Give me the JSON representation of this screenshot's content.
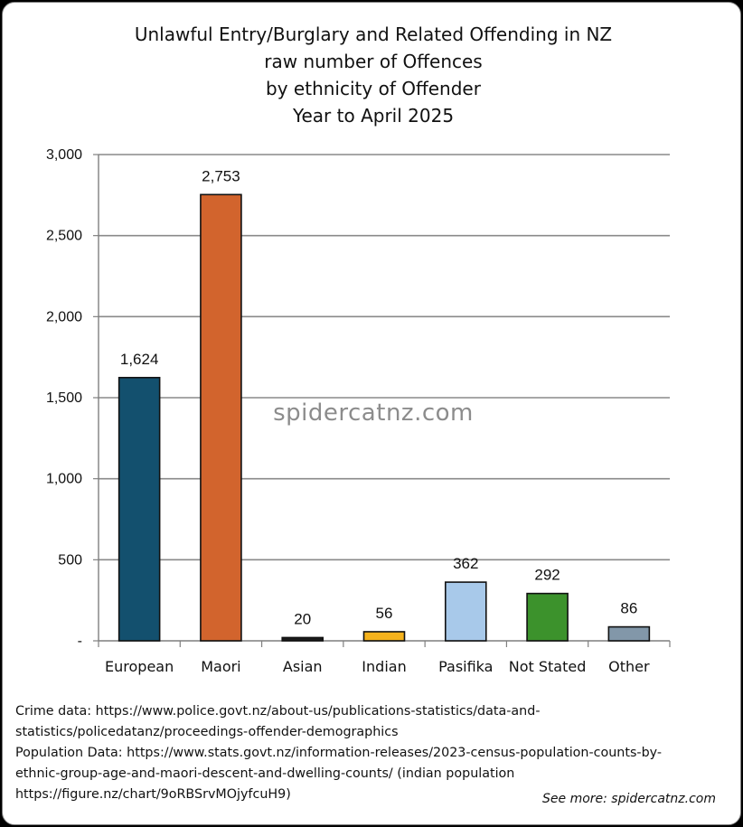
{
  "chart_data": {
    "type": "bar",
    "title": [
      "Unlawful Entry/Burglary and Related Offending in NZ",
      "raw number of Offences",
      "by ethnicity of Offender",
      "Year to April 2025"
    ],
    "categories": [
      "European",
      "Maori",
      "Asian",
      "Indian",
      "Pasifika",
      "Not Stated",
      "Other"
    ],
    "values": [
      1624,
      2753,
      20,
      56,
      362,
      292,
      86
    ],
    "data_labels": [
      "1,624",
      "2,753",
      "20",
      "56",
      "362",
      "292",
      "86"
    ],
    "colors": [
      "#13506e",
      "#d2642d",
      "#1a1a1a",
      "#f5b21c",
      "#a8c9ea",
      "#3c922c",
      "#8297a9"
    ],
    "ylim": [
      0,
      3000
    ],
    "y_ticks": [
      0,
      500,
      1000,
      1500,
      2000,
      2500,
      3000
    ],
    "y_tick_labels": [
      "-",
      "500",
      "1,000",
      "1,500",
      "2,000",
      "2,500",
      "3,000"
    ],
    "grid": true,
    "xlabel": "",
    "ylabel": "",
    "watermark": "spidercatnz.com"
  },
  "footer": {
    "lines": [
      "Crime data: https://www.police.govt.nz/about-us/publications-statistics/data-and-",
      "statistics/policedatanz/proceedings-offender-demographics",
      "Population Data: https://www.stats.govt.nz/information-releases/2023-census-population-counts-by-",
      "ethnic-group-age-and-maori-descent-and-dwelling-counts/ (indian population",
      "https://figure.nz/chart/9oRBSrvMOjyfcuH9)"
    ],
    "see_more": "See more: spidercatnz.com"
  }
}
